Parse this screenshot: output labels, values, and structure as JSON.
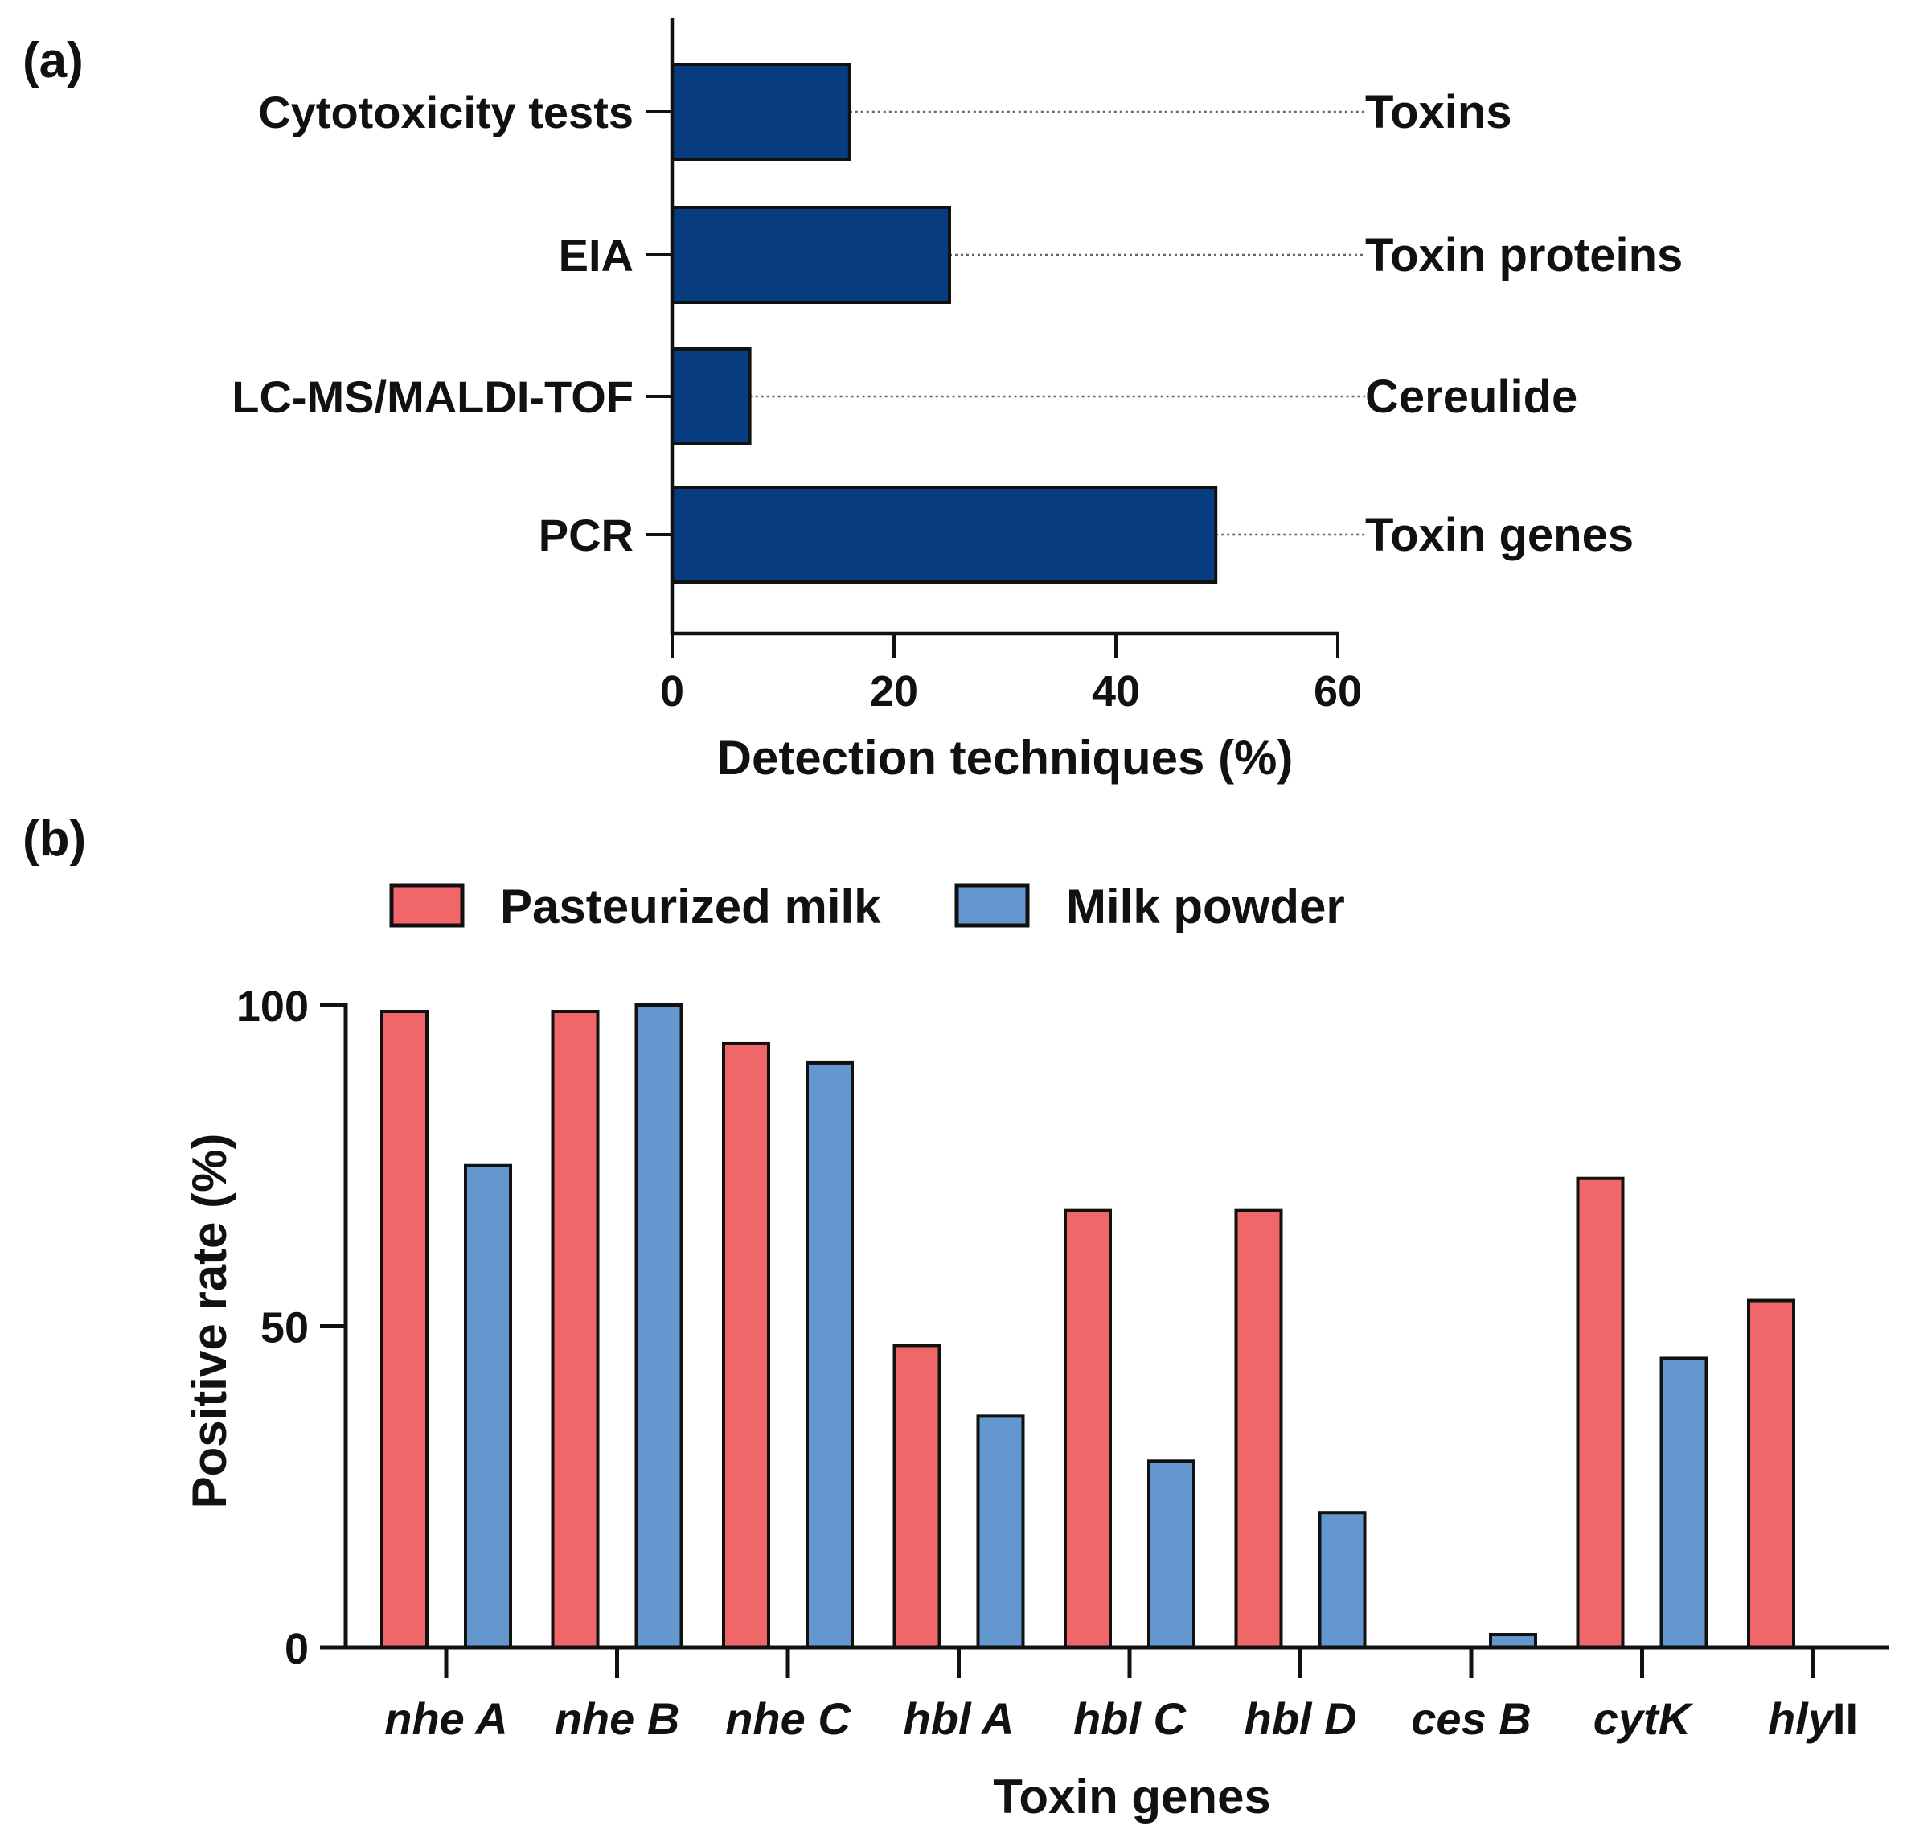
{
  "chart_data": [
    {
      "panel": "(a)",
      "type": "bar",
      "orientation": "horizontal",
      "categories": [
        "Cytotoxicity tests",
        "EIA",
        "LC-MS/MALDI-TOF",
        "PCR"
      ],
      "values": [
        16,
        25,
        7,
        49
      ],
      "annotations": [
        "Toxins",
        "Toxin proteins",
        "Cereulide",
        "Toxin genes"
      ],
      "xlabel": "Detection techniques (%)",
      "ylabel": "",
      "xlim": [
        0,
        60
      ],
      "xticks": [
        0,
        20,
        40,
        60
      ],
      "bar_color": "#073d80"
    },
    {
      "panel": "(b)",
      "type": "bar",
      "orientation": "vertical",
      "categories": [
        {
          "italic": "nhe A",
          "plain": ""
        },
        {
          "italic": "nhe B",
          "plain": ""
        },
        {
          "italic": "nhe C",
          "plain": ""
        },
        {
          "italic": "hbl A",
          "plain": ""
        },
        {
          "italic": "hbl C",
          "plain": ""
        },
        {
          "italic": "hbl D",
          "plain": ""
        },
        {
          "italic": "ces B",
          "plain": ""
        },
        {
          "italic": "cytK",
          "plain": ""
        },
        {
          "italic": "hly",
          "plain": "II"
        }
      ],
      "series": [
        {
          "name": "Pasteurized milk",
          "color": "#f06769",
          "values": [
            99,
            99,
            94,
            47,
            68,
            68,
            0,
            73,
            54
          ]
        },
        {
          "name": "Milk powder",
          "color": "#6397cd",
          "values": [
            75,
            100,
            91,
            36,
            29,
            21,
            2,
            45,
            0
          ]
        }
      ],
      "xlabel": "Toxin genes",
      "ylabel": "Positive rate (%)",
      "ylim": [
        0,
        100
      ],
      "yticks": [
        0,
        50,
        100
      ],
      "legend": "top"
    }
  ]
}
